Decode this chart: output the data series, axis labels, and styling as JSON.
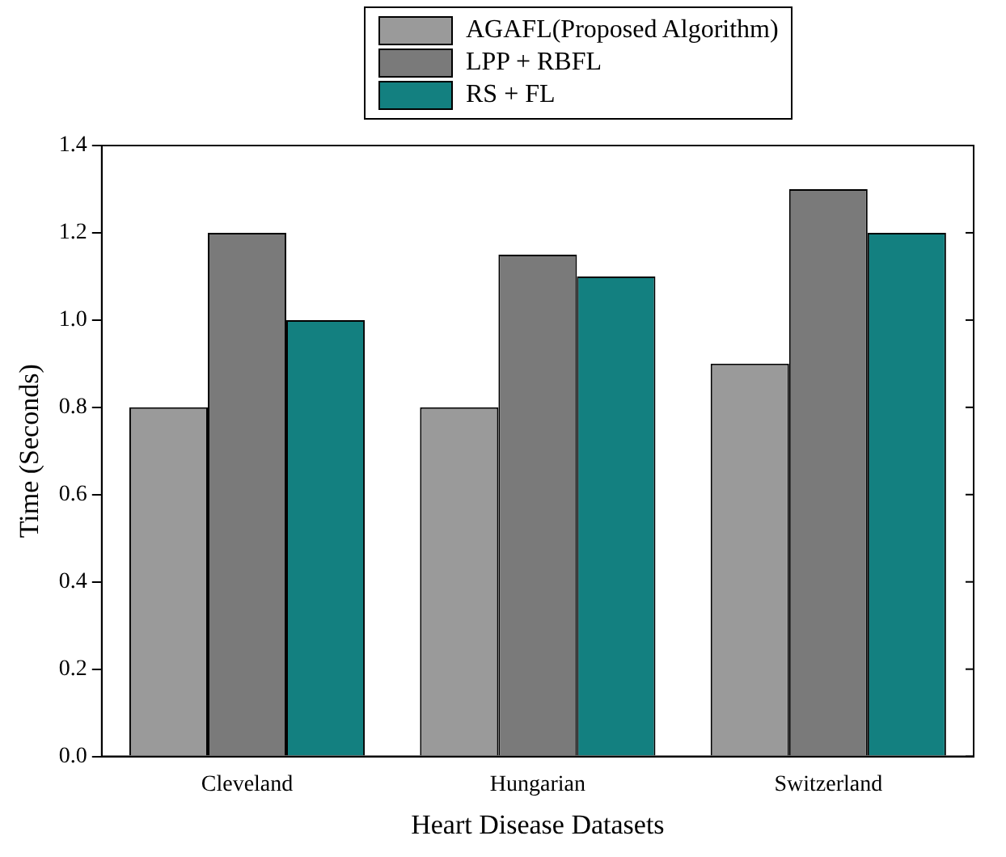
{
  "chart_data": {
    "type": "bar",
    "xlabel": "Heart Disease Datasets",
    "ylabel": "Time (Seconds)",
    "categories": [
      "Cleveland",
      "Hungarian",
      "Switzerland"
    ],
    "series": [
      {
        "name": "AGAFL(Proposed Algorithm)",
        "color": "#9a9a9a",
        "values": [
          0.8,
          0.8,
          0.9
        ]
      },
      {
        "name": "LPP + RBFL",
        "color": "#7a7a7a",
        "values": [
          1.2,
          1.15,
          1.3
        ]
      },
      {
        "name": "RS + FL",
        "color": "#138080",
        "values": [
          1.0,
          1.1,
          1.2
        ]
      }
    ],
    "ylim": [
      0,
      1.4
    ],
    "yticks": [
      {
        "value": 0,
        "label": "0.0"
      },
      0.2,
      0.4,
      0.6,
      0.8,
      {
        "value": 1,
        "label": "1.0"
      },
      1.2,
      1.4
    ],
    "legend": "top",
    "grid": false
  }
}
